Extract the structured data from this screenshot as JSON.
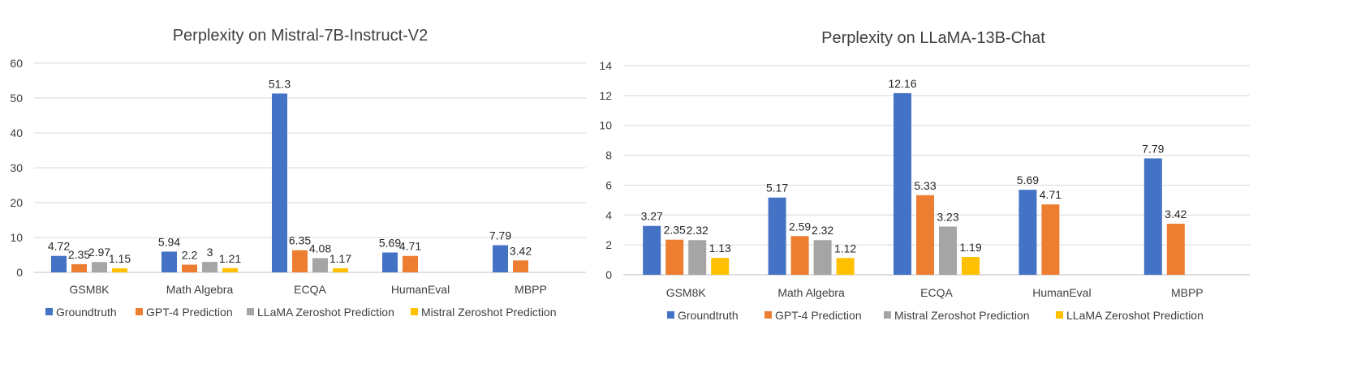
{
  "chart_data": [
    {
      "type": "bar",
      "title": "Perplexity on Mistral-7B-Instruct-V2",
      "xlabel": "",
      "ylabel": "",
      "ylim": [
        0,
        60
      ],
      "yticks": [
        0,
        10,
        20,
        30,
        40,
        50,
        60
      ],
      "grid": true,
      "legend_position": "bottom",
      "categories": [
        "GSM8K",
        "Math Algebra",
        "ECQA",
        "HumanEval",
        "MBPP"
      ],
      "series": [
        {
          "name": "Groundtruth",
          "color": "#4472C4",
          "values": [
            4.72,
            5.94,
            51.3,
            5.69,
            7.79
          ]
        },
        {
          "name": "GPT-4 Prediction",
          "color": "#ED7D31",
          "values": [
            2.35,
            2.2,
            6.35,
            4.71,
            3.42
          ]
        },
        {
          "name": "LLaMA Zeroshot Prediction",
          "color": "#A5A5A5",
          "values": [
            2.97,
            3,
            4.08,
            null,
            null
          ]
        },
        {
          "name": "Mistral Zeroshot Prediction",
          "color": "#FFC000",
          "values": [
            1.15,
            1.21,
            1.17,
            null,
            null
          ]
        }
      ]
    },
    {
      "type": "bar",
      "title": "Perplexity on LLaMA-13B-Chat",
      "xlabel": "",
      "ylabel": "",
      "ylim": [
        0,
        14
      ],
      "yticks": [
        0,
        2,
        4,
        6,
        8,
        10,
        12,
        14
      ],
      "grid": true,
      "legend_position": "bottom",
      "categories": [
        "GSM8K",
        "Math Algebra",
        "ECQA",
        "HumanEval",
        "MBPP"
      ],
      "series": [
        {
          "name": "Groundtruth",
          "color": "#4472C4",
          "values": [
            3.27,
            5.17,
            12.16,
            5.69,
            7.79
          ]
        },
        {
          "name": "GPT-4 Prediction",
          "color": "#ED7D31",
          "values": [
            2.35,
            2.59,
            5.33,
            4.71,
            3.42
          ]
        },
        {
          "name": "Mistral Zeroshot Prediction",
          "color": "#A5A5A5",
          "values": [
            2.32,
            2.32,
            3.23,
            null,
            null
          ]
        },
        {
          "name": "LLaMA Zeroshot Prediction",
          "color": "#FFC000",
          "values": [
            1.13,
            1.12,
            1.19,
            null,
            null
          ]
        }
      ]
    }
  ]
}
